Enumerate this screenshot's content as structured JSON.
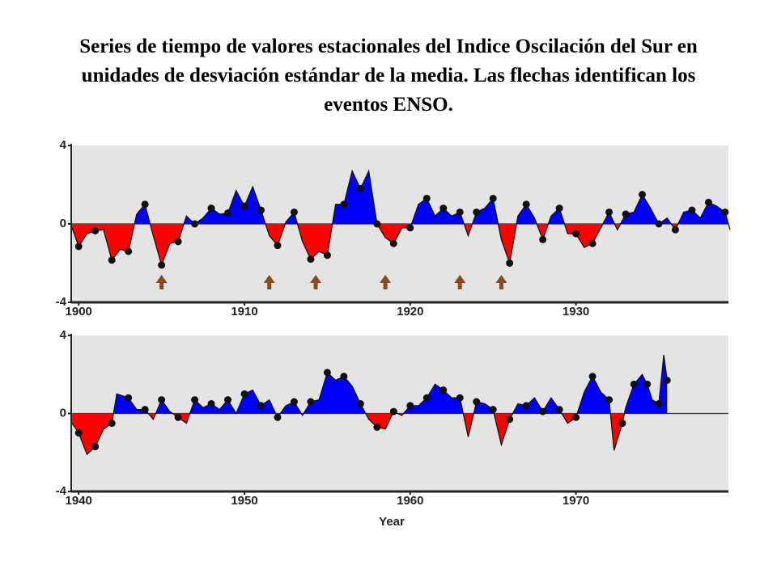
{
  "chart_data": [
    {
      "type": "area",
      "title": "Series de tiempo de valores estacionales del Indice Oscilación del Sur en unidades de desviación estándar de la media. Las flechas identifican los eventos ENSO.",
      "x": [
        1899.6,
        1900.0,
        1900.5,
        1901.0,
        1901.5,
        1902.0,
        1902.5,
        1903.0,
        1903.5,
        1904.0,
        1904.4,
        1905.0,
        1905.5,
        1906.0,
        1906.5,
        1907.0,
        1907.5,
        1908.0,
        1908.5,
        1909.0,
        1909.5,
        1910.0,
        1910.5,
        1911.0,
        1911.5,
        1912.0,
        1912.5,
        1913.0,
        1913.5,
        1914.0,
        1914.5,
        1915.0,
        1915.5,
        1916.0,
        1916.5,
        1917.0,
        1917.5,
        1918.0,
        1918.5,
        1919.0,
        1919.5,
        1920.0,
        1920.5,
        1921.0,
        1921.5,
        1922.0,
        1922.5,
        1923.0,
        1923.5,
        1924.0,
        1924.5,
        1925.0,
        1925.5,
        1926.0,
        1926.5,
        1927.0,
        1927.5,
        1928.0,
        1928.5,
        1929.0,
        1929.5,
        1930.0,
        1930.5,
        1931.0,
        1931.5,
        1932.0,
        1932.5,
        1933.0,
        1933.5,
        1934.0,
        1934.5,
        1935.0,
        1935.5,
        1936.0,
        1936.5,
        1937.0,
        1937.5,
        1938.0,
        1938.5,
        1939.0,
        1939.3
      ],
      "values": [
        -0.2,
        -1.15,
        -0.5,
        -0.35,
        -0.3,
        -1.85,
        -1.3,
        -1.4,
        0.5,
        1.0,
        -0.3,
        -2.1,
        -1.0,
        -0.9,
        0.4,
        0.0,
        0.3,
        0.8,
        0.5,
        0.55,
        1.7,
        0.9,
        1.9,
        0.7,
        -0.6,
        -1.1,
        0.1,
        0.6,
        -0.9,
        -1.8,
        -1.4,
        -1.6,
        1.0,
        1.0,
        2.7,
        1.8,
        2.7,
        0.0,
        -0.7,
        -1.0,
        -0.2,
        -0.2,
        1.0,
        1.3,
        0.4,
        0.8,
        0.4,
        0.6,
        -0.6,
        0.6,
        0.8,
        1.3,
        -0.8,
        -2.0,
        0.4,
        1.0,
        0.3,
        -0.8,
        0.4,
        0.8,
        -0.5,
        -0.5,
        -1.2,
        -1.0,
        -0.2,
        0.6,
        -0.3,
        0.5,
        0.6,
        1.5,
        0.8,
        0.0,
        0.3,
        -0.3,
        0.6,
        0.7,
        0.3,
        1.1,
        0.9,
        0.6,
        -0.3
      ],
      "positive_color": "#0000ff",
      "negative_color": "#ff0000",
      "enso_events": [
        1905.0,
        1911.5,
        1914.3,
        1918.5,
        1923.0,
        1925.5
      ],
      "arrow_color": "#8b4a1e",
      "xlim": [
        1899.55,
        1939.2
      ],
      "xticks": [
        1900,
        1910,
        1920,
        1930
      ],
      "ylim": [
        -4,
        4
      ],
      "yticks": [
        4,
        0,
        -4
      ]
    },
    {
      "type": "area",
      "x": [
        1939.6,
        1940.0,
        1940.5,
        1941.0,
        1941.5,
        1942.0,
        1942.3,
        1943.0,
        1943.5,
        1944.0,
        1944.5,
        1945.0,
        1945.5,
        1946.0,
        1946.5,
        1947.0,
        1947.5,
        1948.0,
        1948.5,
        1949.0,
        1949.5,
        1950.0,
        1950.5,
        1951.0,
        1951.5,
        1952.0,
        1952.5,
        1953.0,
        1953.5,
        1954.0,
        1954.5,
        1955.0,
        1955.5,
        1956.0,
        1956.5,
        1957.0,
        1957.5,
        1958.0,
        1958.5,
        1959.0,
        1959.5,
        1960.0,
        1960.5,
        1961.0,
        1961.5,
        1962.0,
        1962.5,
        1963.0,
        1963.5,
        1964.0,
        1964.5,
        1965.0,
        1965.5,
        1966.0,
        1966.5,
        1967.0,
        1967.5,
        1968.0,
        1968.5,
        1969.0,
        1969.5,
        1970.0,
        1970.5,
        1971.0,
        1971.5,
        1972.0,
        1972.3,
        1972.8,
        1973.0,
        1973.5,
        1974.0,
        1974.3,
        1974.6,
        1975.0,
        1975.3,
        1975.5
      ],
      "values": [
        -0.5,
        -1.0,
        -2.1,
        -1.7,
        -0.8,
        -0.5,
        1.0,
        0.8,
        0.2,
        0.2,
        -0.3,
        0.7,
        0.1,
        -0.2,
        -0.5,
        0.7,
        0.3,
        0.5,
        0.2,
        0.7,
        0.0,
        1.0,
        1.2,
        0.4,
        0.7,
        -0.2,
        0.4,
        0.6,
        -0.1,
        0.6,
        0.7,
        2.1,
        1.7,
        1.9,
        1.4,
        0.5,
        -0.3,
        -0.7,
        -0.8,
        0.1,
        -0.1,
        0.4,
        0.4,
        0.8,
        1.5,
        1.2,
        0.8,
        0.8,
        -1.2,
        0.6,
        0.5,
        0.2,
        -1.6,
        -0.3,
        0.5,
        0.4,
        0.8,
        0.1,
        0.8,
        0.2,
        -0.5,
        -0.2,
        1.1,
        1.9,
        1.1,
        0.7,
        -1.9,
        -0.5,
        0.3,
        1.5,
        2.0,
        1.5,
        0.7,
        0.5,
        3.0,
        1.7
      ],
      "positive_color": "#0000ff",
      "negative_color": "#ff0000",
      "x_label": "Year",
      "xlim": [
        1939.55,
        1979.2
      ],
      "xticks": [
        1940,
        1950,
        1960,
        1970
      ],
      "ylim": [
        -4,
        4
      ],
      "yticks": [
        4,
        0,
        -4
      ]
    }
  ]
}
